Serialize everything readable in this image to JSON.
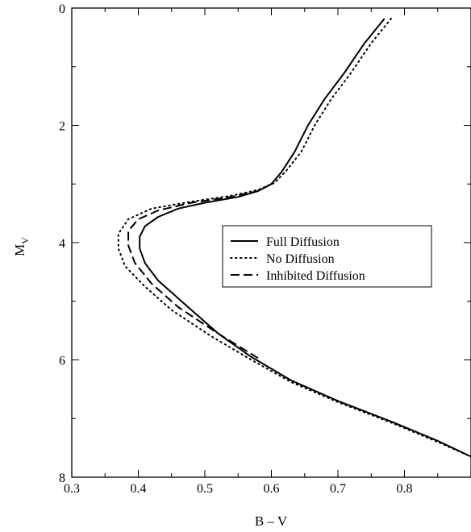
{
  "chart_data": {
    "type": "line",
    "xlabel": "B – V",
    "ylabel_main": "M",
    "ylabel_sub": "V",
    "xlim": [
      0.3,
      0.9
    ],
    "ylim": [
      8,
      0
    ],
    "y_inverted": true,
    "grid": false,
    "legend_placement": "center-right",
    "x_ticks": [
      {
        "value": 0.3,
        "label": "0.3"
      },
      {
        "value": 0.4,
        "label": "0.4"
      },
      {
        "value": 0.5,
        "label": "0.5"
      },
      {
        "value": 0.6,
        "label": "0.6"
      },
      {
        "value": 0.7,
        "label": "0.7"
      },
      {
        "value": 0.8,
        "label": "0.8"
      }
    ],
    "y_ticks": [
      {
        "value": 0,
        "label": "0"
      },
      {
        "value": 2,
        "label": "2"
      },
      {
        "value": 4,
        "label": "4"
      },
      {
        "value": 6,
        "label": "6"
      },
      {
        "value": 8,
        "label": "8"
      }
    ],
    "series": [
      {
        "name": "Full Diffusion",
        "style": "solid",
        "color": "#000000",
        "points": [
          [
            0.77,
            0.18
          ],
          [
            0.74,
            0.6
          ],
          [
            0.71,
            1.1
          ],
          [
            0.68,
            1.55
          ],
          [
            0.655,
            2.0
          ],
          [
            0.635,
            2.45
          ],
          [
            0.615,
            2.8
          ],
          [
            0.6,
            3.0
          ],
          [
            0.58,
            3.12
          ],
          [
            0.55,
            3.22
          ],
          [
            0.5,
            3.32
          ],
          [
            0.46,
            3.42
          ],
          [
            0.43,
            3.56
          ],
          [
            0.41,
            3.72
          ],
          [
            0.402,
            3.9
          ],
          [
            0.402,
            4.1
          ],
          [
            0.41,
            4.35
          ],
          [
            0.43,
            4.65
          ],
          [
            0.47,
            5.05
          ],
          [
            0.52,
            5.55
          ],
          [
            0.57,
            5.95
          ],
          [
            0.63,
            6.35
          ],
          [
            0.7,
            6.7
          ],
          [
            0.78,
            7.05
          ],
          [
            0.85,
            7.38
          ],
          [
            0.9,
            7.65
          ]
        ]
      },
      {
        "name": "No Diffusion",
        "style": "dotted",
        "color": "#000000",
        "points": [
          [
            0.78,
            0.18
          ],
          [
            0.75,
            0.6
          ],
          [
            0.72,
            1.1
          ],
          [
            0.69,
            1.55
          ],
          [
            0.665,
            2.0
          ],
          [
            0.645,
            2.45
          ],
          [
            0.622,
            2.78
          ],
          [
            0.605,
            2.98
          ],
          [
            0.58,
            3.1
          ],
          [
            0.54,
            3.2
          ],
          [
            0.48,
            3.3
          ],
          [
            0.42,
            3.42
          ],
          [
            0.385,
            3.6
          ],
          [
            0.37,
            3.85
          ],
          [
            0.37,
            4.1
          ],
          [
            0.38,
            4.4
          ],
          [
            0.41,
            4.75
          ],
          [
            0.45,
            5.15
          ],
          [
            0.51,
            5.6
          ],
          [
            0.57,
            6.0
          ],
          [
            0.63,
            6.38
          ],
          [
            0.7,
            6.72
          ],
          [
            0.78,
            7.07
          ],
          [
            0.85,
            7.4
          ],
          [
            0.9,
            7.65
          ]
        ]
      },
      {
        "name": "Inhibited Diffusion",
        "style": "dashed",
        "color": "#000000",
        "points": [
          [
            0.6,
            3.0
          ],
          [
            0.58,
            3.12
          ],
          [
            0.54,
            3.22
          ],
          [
            0.48,
            3.32
          ],
          [
            0.43,
            3.45
          ],
          [
            0.4,
            3.6
          ],
          [
            0.385,
            3.8
          ],
          [
            0.385,
            4.05
          ],
          [
            0.395,
            4.35
          ],
          [
            0.42,
            4.7
          ],
          [
            0.46,
            5.1
          ],
          [
            0.52,
            5.55
          ],
          [
            0.58,
            5.97
          ]
        ]
      }
    ]
  }
}
